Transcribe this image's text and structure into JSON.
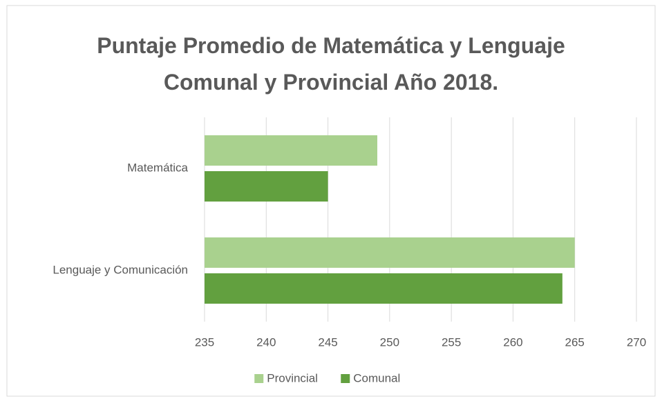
{
  "chart_data": {
    "type": "barh",
    "title": "Puntaje Promedio de Matemática y Lenguaje Comunal y Provincial Año 2018.",
    "categories": [
      "Matemática",
      "Lenguaje y Comunicación"
    ],
    "series": [
      {
        "name": "Provincial",
        "color": "#a9d18e",
        "values": [
          249,
          265
        ]
      },
      {
        "name": "Comunal",
        "color": "#62a03f",
        "values": [
          245,
          264
        ]
      }
    ],
    "xlim": [
      235,
      270
    ],
    "xticks": [
      235,
      240,
      245,
      250,
      255,
      260,
      265,
      270
    ],
    "grid": true,
    "legend": "bottom"
  }
}
